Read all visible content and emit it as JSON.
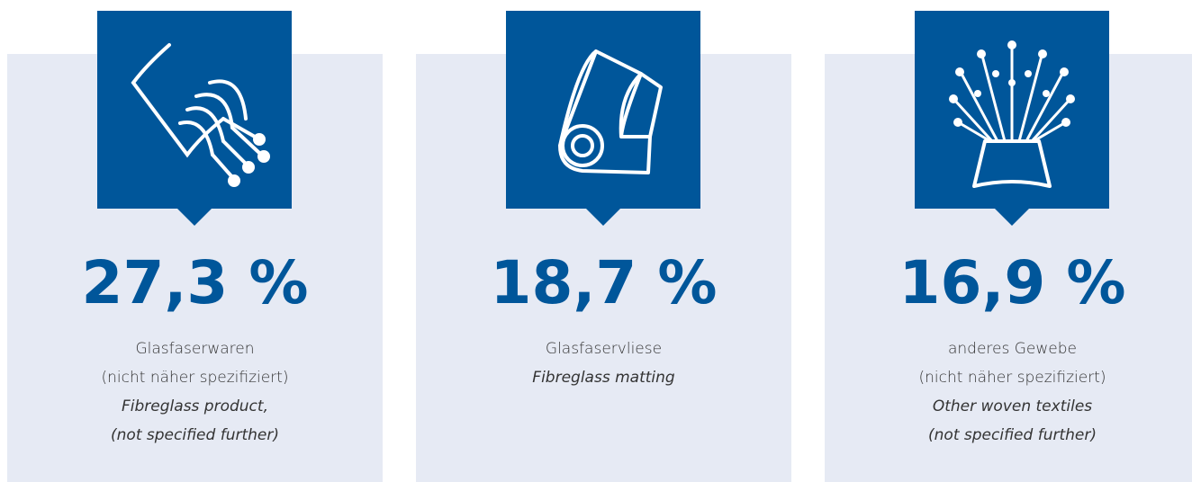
{
  "cards": [
    {
      "value": "27,3 %",
      "german": [
        "Glasfaserwaren",
        "(nicht näher spezifiziert)"
      ],
      "english": [
        "Fibreglass product,",
        "(not specified further)"
      ]
    },
    {
      "value": "18,7 %",
      "german": [
        "Glasfaservliese"
      ],
      "english": [
        "Fibreglass matting"
      ]
    },
    {
      "value": "16,9 %",
      "german": [
        "anderes Gewebe",
        "(nicht näher spezifiziert)"
      ],
      "english": [
        "Other woven textiles",
        "(not specified further)"
      ]
    }
  ]
}
